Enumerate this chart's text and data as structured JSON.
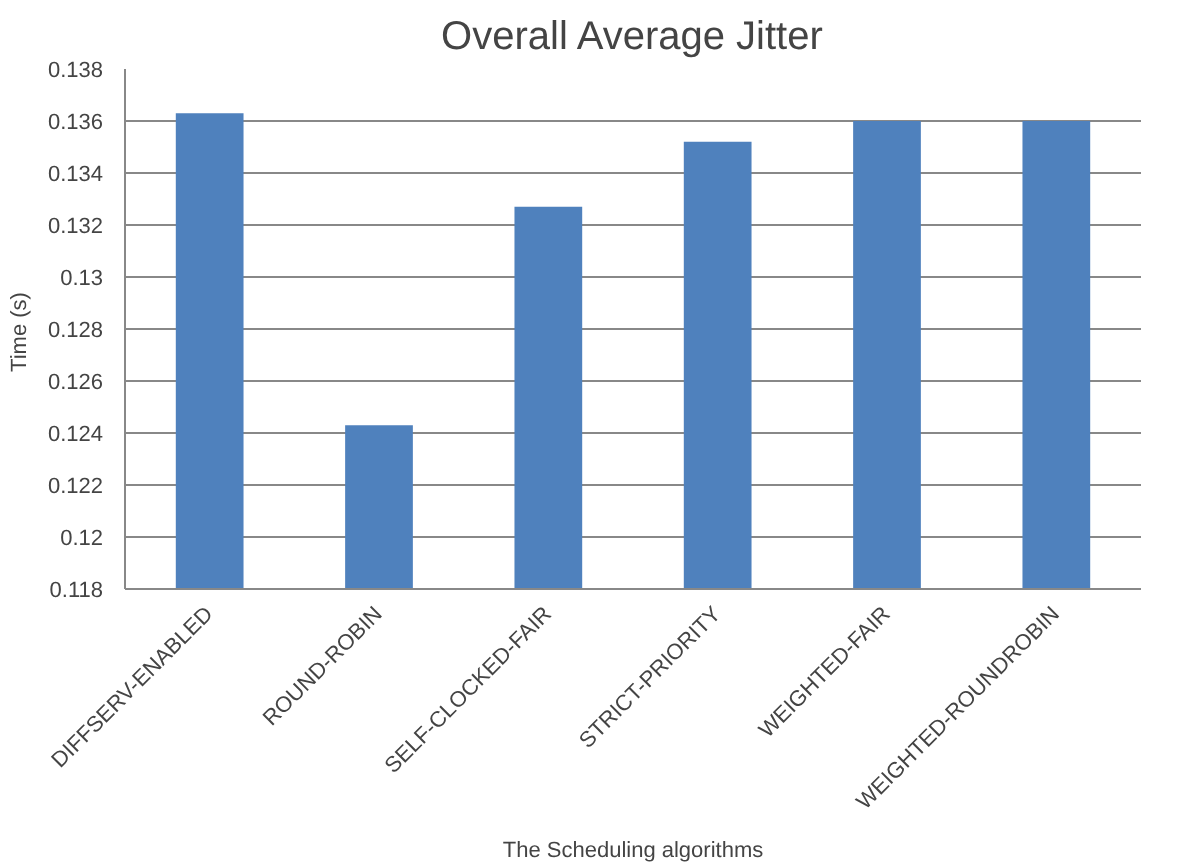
{
  "chart_data": {
    "type": "bar",
    "title": "Overall Average Jitter",
    "xlabel": "The Scheduling algorithms",
    "ylabel": "Time  (s)",
    "categories": [
      "DIFFSERV-ENABLED",
      "ROUND-ROBIN",
      "SELF-CLOCKED-FAIR",
      "STRICT-PRIORITY",
      "WEIGHTED-FAIR",
      "WEIGHTED-ROUNDROBIN"
    ],
    "values": [
      0.1363,
      0.1243,
      0.1327,
      0.1352,
      0.136,
      0.136
    ],
    "color": "#4f81bd",
    "ylim": [
      0.118,
      0.138
    ],
    "yticks": [
      0.118,
      0.12,
      0.122,
      0.124,
      0.126,
      0.128,
      0.13,
      0.132,
      0.134,
      0.136,
      0.138
    ],
    "grid": "y"
  }
}
